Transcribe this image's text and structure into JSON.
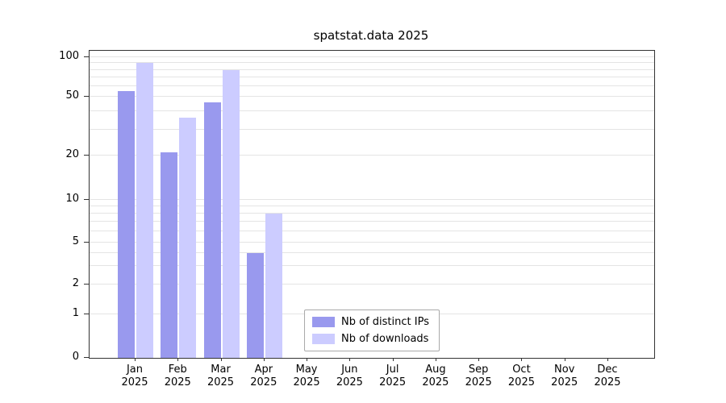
{
  "chart_data": {
    "type": "bar",
    "title": "spatstat.data 2025",
    "categories": [
      "Jan",
      "Feb",
      "Mar",
      "Apr",
      "May",
      "Jun",
      "Jul",
      "Aug",
      "Sep",
      "Oct",
      "Nov",
      "Dec"
    ],
    "x_year": "2025",
    "series": [
      {
        "name": "Nb of distinct IPs",
        "color": "#9999ee",
        "values": [
          55,
          21,
          46,
          4,
          0,
          0,
          0,
          0,
          0,
          0,
          0,
          0
        ]
      },
      {
        "name": "Nb of downloads",
        "color": "#ccccff",
        "values": [
          90,
          36,
          80,
          8,
          0,
          0,
          0,
          0,
          0,
          0,
          0,
          0
        ]
      }
    ],
    "y_ticks": [
      0,
      1,
      2,
      5,
      10,
      20,
      50,
      100
    ],
    "y_scale": "log-like with zero baseline",
    "grid": true,
    "gridline_values": [
      1,
      2,
      3,
      4,
      5,
      6,
      7,
      8,
      9,
      10,
      20,
      30,
      40,
      50,
      60,
      70,
      80,
      90,
      100
    ],
    "legend_position": "bottom-center-inside",
    "colors": {
      "grid": "#e4e4e4",
      "frame": "#333333",
      "text": "#000000"
    }
  }
}
